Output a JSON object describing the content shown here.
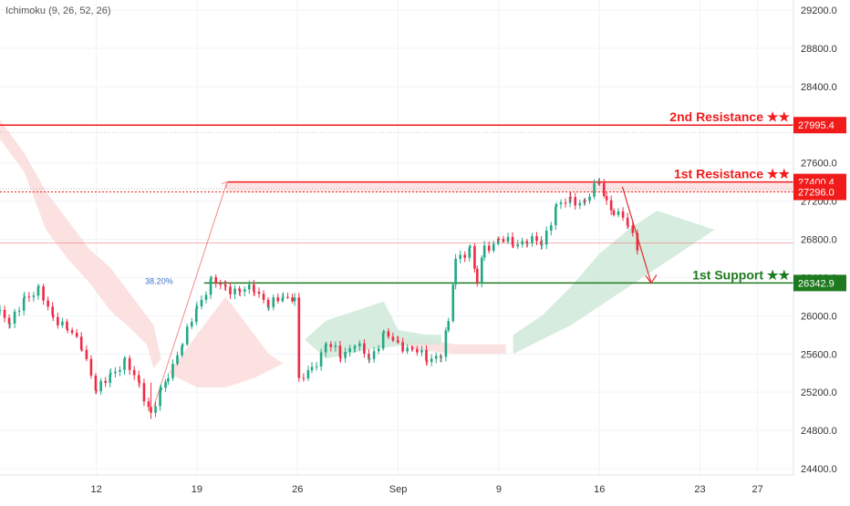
{
  "indicator": {
    "label": "Ichimoku (9, 26, 52, 26)"
  },
  "colors": {
    "resistance": "#f21b1b",
    "support": "#1e7a1e",
    "bull": "#22a884",
    "bear": "#ef2b45",
    "cloud_bull": "#cfe9d8",
    "cloud_bear": "#fbdada",
    "fib": "#3f72c9",
    "grid": "#f0f3fa",
    "axis_text": "#333333"
  },
  "chart_data": {
    "type": "candlestick",
    "y_ticks": [
      "29200.0",
      "28800.0",
      "28400.0",
      "28000.0",
      "27600.0",
      "27200.0",
      "26800.0",
      "26400.0",
      "26000.0",
      "25600.0",
      "25200.0",
      "24800.0",
      "24400.0"
    ],
    "y_tick_values": [
      29200,
      28800,
      28400,
      28000,
      27600,
      27200,
      26800,
      26400,
      26000,
      25600,
      25200,
      24800,
      24400
    ],
    "x_ticks": [
      "12",
      "19",
      "26",
      "Sep",
      "9",
      "16",
      "23",
      "27"
    ],
    "x_tick_days": [
      12,
      19,
      26,
      33,
      40,
      47,
      54,
      58
    ],
    "x_range_days": [
      5.3,
      60.5
    ],
    "ylim": [
      24400,
      29400
    ],
    "levels": [
      {
        "name": "2nd Resistance ★★",
        "price_label": "27995.4",
        "value": 27995.4,
        "color": "#f21b1b"
      },
      {
        "name": "1st Resistance ★★",
        "price_label": "27400.4",
        "value": 27400.4,
        "color": "#f21b1b"
      },
      {
        "name": "",
        "price_label": "27296.0",
        "value": 27296.0,
        "color": "#f21b1b"
      },
      {
        "name": "1st Support ★★",
        "price_label": "26342.9",
        "value": 26342.9,
        "color": "#1e7a1e"
      }
    ],
    "fib_label": "38.20%",
    "fib_value": 26342.9,
    "ohlc_points": [
      [
        5.3,
        26050
      ],
      [
        6,
        25900
      ],
      [
        7,
        26200
      ],
      [
        8,
        26250
      ],
      [
        9,
        26000
      ],
      [
        10,
        25850
      ],
      [
        11,
        25700
      ],
      [
        12,
        25200
      ],
      [
        13,
        25400
      ],
      [
        14,
        25500
      ],
      [
        15,
        25300
      ],
      [
        15.8,
        24950
      ],
      [
        16.5,
        25200
      ],
      [
        17,
        25400
      ],
      [
        18,
        25700
      ],
      [
        19,
        26100
      ],
      [
        20,
        26350
      ],
      [
        21,
        26300
      ],
      [
        22,
        26250
      ],
      [
        23,
        26300
      ],
      [
        24,
        26100
      ],
      [
        25,
        26200
      ],
      [
        25.8,
        26200
      ],
      [
        26.1,
        25300
      ],
      [
        27,
        25450
      ],
      [
        28,
        25700
      ],
      [
        29,
        25600
      ],
      [
        30,
        25700
      ],
      [
        31,
        25550
      ],
      [
        32,
        25800
      ],
      [
        33,
        25700
      ],
      [
        34,
        25650
      ],
      [
        35,
        25550
      ],
      [
        36,
        25600
      ],
      [
        36.5,
        25900
      ],
      [
        37,
        26600
      ],
      [
        38,
        26700
      ],
      [
        38.5,
        26350
      ],
      [
        39,
        26700
      ],
      [
        40,
        26800
      ],
      [
        41,
        26750
      ],
      [
        42,
        26800
      ],
      [
        43,
        26750
      ],
      [
        44,
        27150
      ],
      [
        45,
        27200
      ],
      [
        46,
        27200
      ],
      [
        47,
        27400
      ],
      [
        47.5,
        27200
      ],
      [
        48,
        27100
      ],
      [
        49,
        26950
      ],
      [
        49.7,
        26720
      ]
    ],
    "projection_arrow": {
      "from": [
        48.6,
        27350
      ],
      "to": [
        50.6,
        26342.9
      ]
    },
    "rally_line": {
      "from": [
        16,
        25050
      ],
      "to": [
        21.1,
        27400.4
      ]
    }
  }
}
